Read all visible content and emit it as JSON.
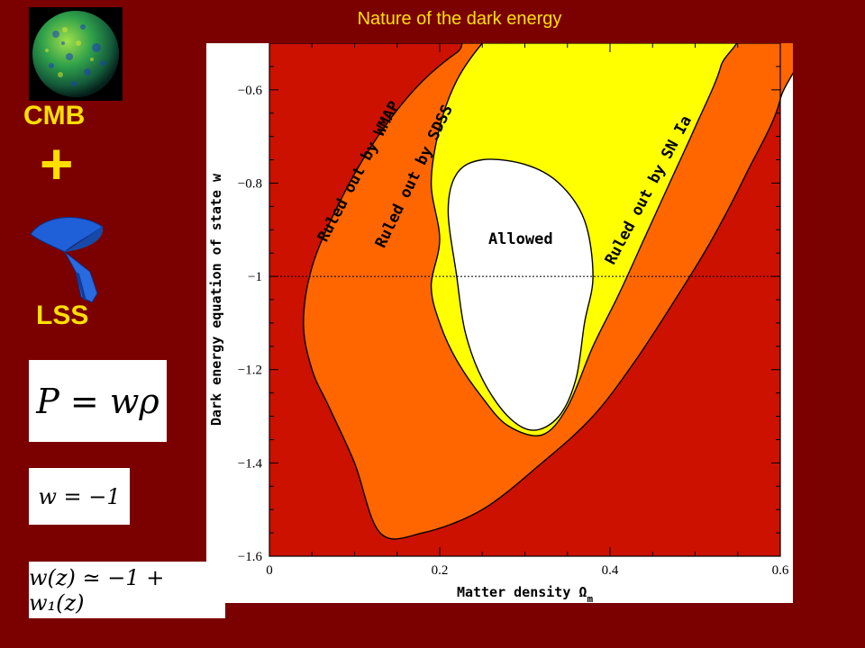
{
  "header": {
    "title": "Nature of the dark energy"
  },
  "sidebar": {
    "cmb_label": "CMB",
    "plus_sign": "+",
    "lss_label": "LSS",
    "equation_1": "P = wρ",
    "equation_2": "w = −1",
    "equation_3": "w(z) ≃ −1 + w₁(z)"
  },
  "colors": {
    "background": "#7b0000",
    "title_text": "#ffe000",
    "ruled_out_wmap": "#cc1100",
    "ruled_out_sdss": "#ff6600",
    "ruled_out_sn": "#ffff00",
    "allowed": "#ffffff"
  },
  "chart_data": {
    "type": "area",
    "xlabel": "Matter density Ω",
    "xlabel_subscript": "m",
    "ylabel": "Dark energy equation of state w",
    "xlim": [
      0,
      0.6
    ],
    "ylim": [
      -1.6,
      -0.5
    ],
    "x_ticks": [
      "0",
      "0.2",
      "0.4",
      "0.6"
    ],
    "y_ticks": [
      "−0.6",
      "−0.8",
      "−1",
      "−1.2",
      "−1.4",
      "−1.6"
    ],
    "reference_line": {
      "y": -1,
      "style": "dotted"
    },
    "regions": [
      {
        "label": "Ruled out by WMAP",
        "boundary": [
          [
            0.04,
            -1.1
          ],
          [
            0.05,
            -0.98
          ],
          [
            0.08,
            -0.85
          ],
          [
            0.12,
            -0.72
          ],
          [
            0.17,
            -0.6
          ],
          [
            0.22,
            -0.52
          ],
          [
            0.27,
            -0.47
          ],
          [
            0.6,
            -0.47
          ],
          [
            0.6,
            -0.62
          ],
          [
            0.56,
            -0.78
          ],
          [
            0.52,
            -0.92
          ],
          [
            0.48,
            -1.04
          ],
          [
            0.43,
            -1.18
          ],
          [
            0.38,
            -1.3
          ],
          [
            0.32,
            -1.4
          ],
          [
            0.25,
            -1.5
          ],
          [
            0.18,
            -1.55
          ],
          [
            0.13,
            -1.55
          ],
          [
            0.1,
            -1.4
          ],
          [
            0.07,
            -1.28
          ],
          [
            0.05,
            -1.2
          ]
        ]
      },
      {
        "label": "Ruled out by SDSS",
        "boundary": [
          [
            0.19,
            -1.02
          ],
          [
            0.2,
            -0.92
          ],
          [
            0.19,
            -0.8
          ],
          [
            0.2,
            -0.68
          ],
          [
            0.22,
            -0.58
          ],
          [
            0.25,
            -0.5
          ],
          [
            0.27,
            -0.47
          ],
          [
            0.53,
            -0.47
          ],
          [
            0.53,
            -0.55
          ],
          [
            0.5,
            -0.68
          ],
          [
            0.47,
            -0.8
          ],
          [
            0.44,
            -0.92
          ],
          [
            0.41,
            -1.04
          ],
          [
            0.38,
            -1.15
          ],
          [
            0.35,
            -1.28
          ],
          [
            0.32,
            -1.34
          ],
          [
            0.28,
            -1.32
          ],
          [
            0.25,
            -1.26
          ],
          [
            0.22,
            -1.18
          ],
          [
            0.2,
            -1.1
          ]
        ]
      },
      {
        "label": "Allowed",
        "boundary": [
          [
            0.22,
            -1.0
          ],
          [
            0.21,
            -0.86
          ],
          [
            0.22,
            -0.78
          ],
          [
            0.25,
            -0.75
          ],
          [
            0.3,
            -0.76
          ],
          [
            0.34,
            -0.8
          ],
          [
            0.37,
            -0.88
          ],
          [
            0.38,
            -1.0
          ],
          [
            0.37,
            -1.1
          ],
          [
            0.36,
            -1.22
          ],
          [
            0.34,
            -1.3
          ],
          [
            0.31,
            -1.33
          ],
          [
            0.28,
            -1.3
          ],
          [
            0.25,
            -1.22
          ],
          [
            0.23,
            -1.12
          ]
        ]
      }
    ]
  }
}
